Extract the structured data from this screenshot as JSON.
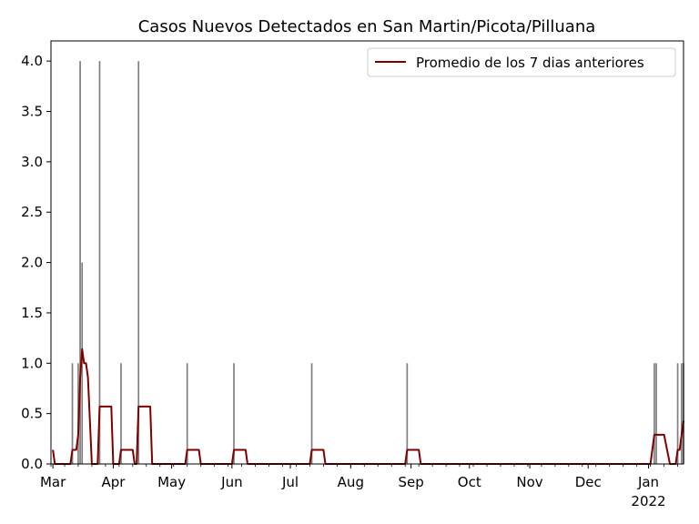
{
  "chart_data": {
    "type": "bar",
    "title": "Casos Nuevos Detectados en San Martin/Picota/Pilluana",
    "xlabel": "",
    "ylabel": "",
    "ylim": [
      0,
      4.2
    ],
    "xlim": [
      "2021-02-28",
      "2022-01-19"
    ],
    "y_ticks": [
      0.0,
      0.5,
      1.0,
      1.5,
      2.0,
      2.5,
      3.0,
      3.5,
      4.0
    ],
    "y_tick_labels": [
      "0.0",
      "0.5",
      "1.0",
      "1.5",
      "2.0",
      "2.5",
      "3.0",
      "3.5",
      "4.0"
    ],
    "x_ticks": [
      {
        "date": "2021-03-01",
        "label": "Mar"
      },
      {
        "date": "2021-04-01",
        "label": "Apr"
      },
      {
        "date": "2021-05-01",
        "label": "May"
      },
      {
        "date": "2021-06-01",
        "label": "Jun"
      },
      {
        "date": "2021-07-01",
        "label": "Jul"
      },
      {
        "date": "2021-08-01",
        "label": "Aug"
      },
      {
        "date": "2021-09-01",
        "label": "Sep"
      },
      {
        "date": "2021-10-01",
        "label": "Oct"
      },
      {
        "date": "2021-11-01",
        "label": "Nov"
      },
      {
        "date": "2021-12-01",
        "label": "Dec"
      },
      {
        "date": "2022-01-01",
        "label": "Jan",
        "sublabel": "2022"
      }
    ],
    "bar_color": "#808080",
    "bars": [
      {
        "date": "2021-03-11",
        "value": 1
      },
      {
        "date": "2021-03-14",
        "value": 1
      },
      {
        "date": "2021-03-15",
        "value": 4
      },
      {
        "date": "2021-03-16",
        "value": 2
      },
      {
        "date": "2021-03-25",
        "value": 4
      },
      {
        "date": "2021-04-05",
        "value": 1
      },
      {
        "date": "2021-04-14",
        "value": 4
      },
      {
        "date": "2021-05-09",
        "value": 1
      },
      {
        "date": "2021-06-02",
        "value": 1
      },
      {
        "date": "2021-07-12",
        "value": 1
      },
      {
        "date": "2021-08-30",
        "value": 1
      },
      {
        "date": "2022-01-04",
        "value": 1
      },
      {
        "date": "2022-01-05",
        "value": 1
      },
      {
        "date": "2022-01-16",
        "value": 1
      },
      {
        "date": "2022-01-18",
        "value": 1
      },
      {
        "date": "2022-01-19",
        "value": 1
      }
    ],
    "series": [
      {
        "name": "Promedio de los 7 dias anteriores",
        "color": "#800000",
        "points": [
          [
            "2021-03-01",
            0.14
          ],
          [
            "2021-03-02",
            0.0
          ],
          [
            "2021-03-10",
            0.0
          ],
          [
            "2021-03-11",
            0.14
          ],
          [
            "2021-03-13",
            0.14
          ],
          [
            "2021-03-14",
            0.29
          ],
          [
            "2021-03-15",
            0.86
          ],
          [
            "2021-03-16",
            1.14
          ],
          [
            "2021-03-17",
            1.0
          ],
          [
            "2021-03-18",
            1.0
          ],
          [
            "2021-03-19",
            0.86
          ],
          [
            "2021-03-20",
            0.43
          ],
          [
            "2021-03-21",
            0.0
          ],
          [
            "2021-03-24",
            0.0
          ],
          [
            "2021-03-25",
            0.57
          ],
          [
            "2021-03-31",
            0.57
          ],
          [
            "2021-04-01",
            0.0
          ],
          [
            "2021-04-04",
            0.0
          ],
          [
            "2021-04-05",
            0.14
          ],
          [
            "2021-04-11",
            0.14
          ],
          [
            "2021-04-12",
            0.0
          ],
          [
            "2021-04-13",
            0.0
          ],
          [
            "2021-04-14",
            0.57
          ],
          [
            "2021-04-20",
            0.57
          ],
          [
            "2021-04-21",
            0.0
          ],
          [
            "2021-05-08",
            0.0
          ],
          [
            "2021-05-09",
            0.14
          ],
          [
            "2021-05-15",
            0.14
          ],
          [
            "2021-05-16",
            0.0
          ],
          [
            "2021-06-01",
            0.0
          ],
          [
            "2021-06-02",
            0.14
          ],
          [
            "2021-06-08",
            0.14
          ],
          [
            "2021-06-09",
            0.0
          ],
          [
            "2021-07-11",
            0.0
          ],
          [
            "2021-07-12",
            0.14
          ],
          [
            "2021-07-18",
            0.14
          ],
          [
            "2021-07-19",
            0.0
          ],
          [
            "2021-08-29",
            0.0
          ],
          [
            "2021-08-30",
            0.14
          ],
          [
            "2021-09-05",
            0.14
          ],
          [
            "2021-09-06",
            0.0
          ],
          [
            "2022-01-02",
            0.0
          ],
          [
            "2022-01-04",
            0.29
          ],
          [
            "2022-01-09",
            0.29
          ],
          [
            "2022-01-12",
            0.0
          ],
          [
            "2022-01-15",
            0.0
          ],
          [
            "2022-01-16",
            0.14
          ],
          [
            "2022-01-17",
            0.14
          ],
          [
            "2022-01-19",
            0.43
          ]
        ]
      }
    ],
    "legend_position": "top-right",
    "grid": false
  }
}
